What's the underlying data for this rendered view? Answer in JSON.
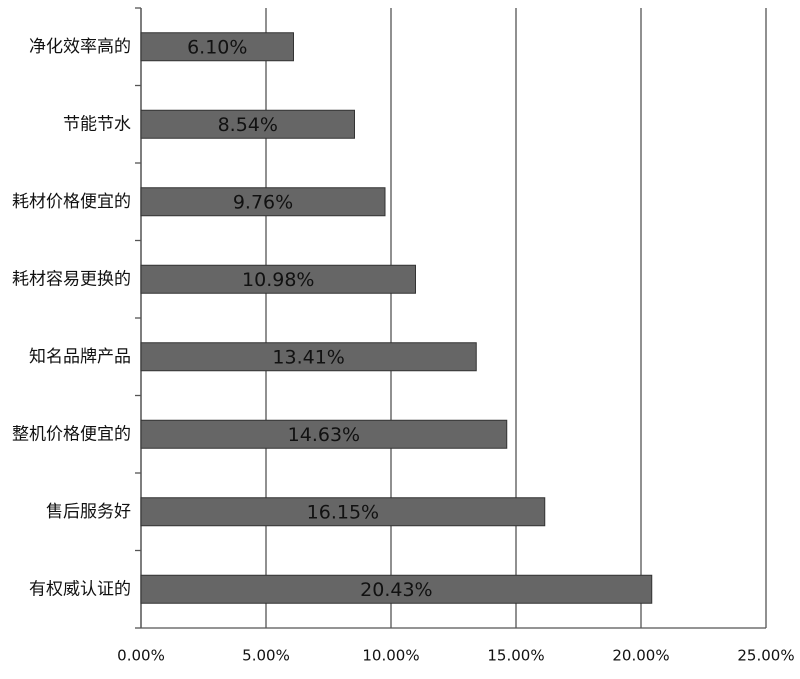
{
  "chart_data": {
    "type": "barh",
    "categories": [
      "净化效率高的",
      "节能节水",
      "耗材价格便宜的",
      "耗材容易更换的",
      "知名品牌产品",
      "整机价格便宜的",
      "售后服务好",
      "有权威认证的"
    ],
    "values": [
      6.1,
      8.54,
      9.76,
      10.98,
      13.41,
      14.63,
      16.15,
      20.43
    ],
    "value_labels": [
      "6.10%",
      "8.54%",
      "9.76%",
      "10.98%",
      "13.41%",
      "14.63%",
      "16.15%",
      "20.43%"
    ],
    "color": "#666666",
    "xlim": [
      0,
      25
    ],
    "xticks": [
      {
        "value": 0,
        "label": "0.00%"
      },
      {
        "value": 5,
        "label": "5.00%"
      },
      {
        "value": 10,
        "label": "10.00%"
      },
      {
        "value": 15,
        "label": "15.00%"
      },
      {
        "value": 20,
        "label": "20.00%"
      },
      {
        "value": 25,
        "label": "25.00%"
      }
    ],
    "grid": true
  }
}
